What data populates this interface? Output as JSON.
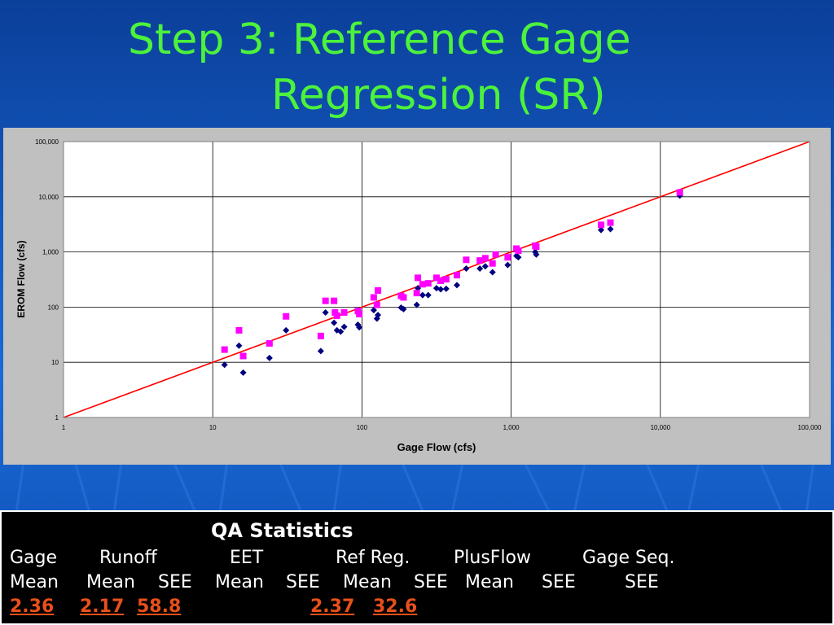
{
  "slide": {
    "title_line1": "Step 3: Reference Gage",
    "title_line2": "Regression (SR)"
  },
  "chart_data": {
    "type": "scatter",
    "xlabel": "Gage Flow (cfs)",
    "ylabel": "EROM Flow (cfs)",
    "x_scale": "log",
    "y_scale": "log",
    "xlim": [
      1,
      100000
    ],
    "ylim": [
      1,
      100000
    ],
    "x_ticks": [
      "1",
      "10",
      "100",
      "1,000",
      "10,000",
      "100,000"
    ],
    "y_ticks": [
      "1",
      "10",
      "100",
      "1,000",
      "10,000",
      "100,000"
    ],
    "grid": true,
    "legend": "none",
    "series": [
      {
        "marker": "diamond",
        "color": "#000080",
        "points": [
          [
            12,
            9
          ],
          [
            15,
            20
          ],
          [
            16,
            6.5
          ],
          [
            24,
            12
          ],
          [
            31,
            38
          ],
          [
            53,
            16
          ],
          [
            57,
            80
          ],
          [
            65,
            52
          ],
          [
            68,
            38
          ],
          [
            72,
            36
          ],
          [
            76,
            44
          ],
          [
            94,
            48
          ],
          [
            96,
            43
          ],
          [
            120,
            88
          ],
          [
            126,
            62
          ],
          [
            128,
            72
          ],
          [
            183,
            98
          ],
          [
            190,
            92
          ],
          [
            233,
            110
          ],
          [
            237,
            220
          ],
          [
            255,
            165
          ],
          [
            278,
            165
          ],
          [
            316,
            220
          ],
          [
            337,
            210
          ],
          [
            367,
            215
          ],
          [
            433,
            250
          ],
          [
            500,
            500
          ],
          [
            617,
            500
          ],
          [
            671,
            550
          ],
          [
            750,
            430
          ],
          [
            948,
            580
          ],
          [
            1085,
            850
          ],
          [
            1118,
            800
          ],
          [
            1451,
            1000
          ],
          [
            1473,
            900
          ],
          [
            4004,
            2500
          ],
          [
            4628,
            2600
          ],
          [
            13500,
            10500
          ]
        ]
      },
      {
        "marker": "square",
        "color": "#ff00ff",
        "points": [
          [
            12,
            17
          ],
          [
            15,
            38
          ],
          [
            16,
            13
          ],
          [
            24,
            22
          ],
          [
            31,
            68
          ],
          [
            53,
            30
          ],
          [
            57,
            130
          ],
          [
            65,
            130
          ],
          [
            66,
            80
          ],
          [
            68,
            70
          ],
          [
            76,
            80
          ],
          [
            94,
            85
          ],
          [
            96,
            75
          ],
          [
            120,
            150
          ],
          [
            126,
            110
          ],
          [
            128,
            200
          ],
          [
            183,
            160
          ],
          [
            190,
            150
          ],
          [
            233,
            180
          ],
          [
            237,
            340
          ],
          [
            255,
            260
          ],
          [
            278,
            270
          ],
          [
            316,
            340
          ],
          [
            337,
            300
          ],
          [
            367,
            320
          ],
          [
            433,
            380
          ],
          [
            500,
            720
          ],
          [
            617,
            700
          ],
          [
            671,
            770
          ],
          [
            750,
            620
          ],
          [
            787,
            900
          ],
          [
            948,
            800
          ],
          [
            1085,
            1150
          ],
          [
            1118,
            1050
          ],
          [
            1451,
            1300
          ],
          [
            1473,
            1250
          ],
          [
            4004,
            3100
          ],
          [
            4628,
            3400
          ],
          [
            13500,
            12000
          ]
        ]
      },
      {
        "type": "line",
        "color": "#ff0000",
        "points": [
          [
            1,
            1
          ],
          [
            100000,
            100000
          ]
        ]
      }
    ]
  },
  "qa": {
    "heading": "QA Statistics",
    "groups": [
      "Gage",
      "Runoff",
      "EET",
      "Ref Reg.",
      "PlusFlow",
      "Gage Seq."
    ],
    "subheads": [
      "Mean",
      "Mean",
      "SEE",
      "Mean",
      "SEE",
      "Mean",
      "SEE",
      "Mean",
      "SEE",
      "SEE"
    ],
    "values": [
      "2.36",
      "2.17",
      "58.8",
      "2.37",
      "32.6"
    ]
  }
}
